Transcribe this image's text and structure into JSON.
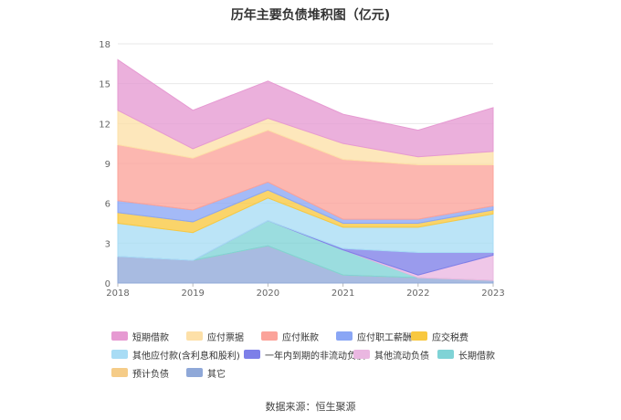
{
  "chart_data": {
    "type": "area",
    "title": "历年主要负债堆积图（亿元)",
    "xlabel": "",
    "ylabel": "",
    "x": [
      "2018",
      "2019",
      "2020",
      "2021",
      "2022",
      "2023"
    ],
    "ylim": [
      0,
      18
    ],
    "yticks": [
      0,
      3,
      6,
      9,
      12,
      15,
      18
    ],
    "grid": true,
    "legend_position": "bottom",
    "source": "数据来源：恒生聚源",
    "series": [
      {
        "name": "其它",
        "color": "#8fa8d8",
        "values": [
          2.0,
          1.7,
          2.8,
          0.6,
          0.4,
          0.2
        ]
      },
      {
        "name": "预计负债",
        "color": "#f5cc88",
        "values": [
          0,
          0,
          0,
          0,
          0,
          0
        ]
      },
      {
        "name": "长期借款",
        "color": "#7fd3d6",
        "values": [
          0,
          0,
          1.9,
          1.9,
          0,
          0
        ]
      },
      {
        "name": "其他流动负债",
        "color": "#eab7e1",
        "values": [
          0,
          0,
          0,
          0,
          0.2,
          1.9
        ]
      },
      {
        "name": "一年内到期的非流动负债",
        "color": "#7d7fe8",
        "values": [
          0,
          0,
          0,
          0.1,
          1.7,
          0.2
        ]
      },
      {
        "name": "其他应付款(含利息和股利)",
        "color": "#a8dcf5",
        "values": [
          2.5,
          2.1,
          1.7,
          1.6,
          1.9,
          2.9
        ]
      },
      {
        "name": "应交税费",
        "color": "#f8c840",
        "values": [
          0.8,
          0.8,
          0.6,
          0.3,
          0.3,
          0.3
        ]
      },
      {
        "name": "应付职工薪酬",
        "color": "#8aa6f5",
        "values": [
          0.9,
          0.9,
          0.6,
          0.3,
          0.3,
          0.3
        ]
      },
      {
        "name": "应付账款",
        "color": "#fba39a",
        "values": [
          4.2,
          3.9,
          3.9,
          4.5,
          4.1,
          3.1
        ]
      },
      {
        "name": "应付票据",
        "color": "#fde0a8",
        "values": [
          2.6,
          0.7,
          0.9,
          1.2,
          0.6,
          1.0
        ]
      },
      {
        "name": "短期借款",
        "color": "#e69ad2",
        "values": [
          3.8,
          2.9,
          2.8,
          2.2,
          2.0,
          3.3
        ]
      }
    ],
    "legend_order": [
      "短期借款",
      "应付票据",
      "应付账款",
      "应付职工薪酬",
      "应交税费",
      "其他应付款(含利息和股利)",
      "一年内到期的非流动负债",
      "其他流动负债",
      "长期借款",
      "预计负债",
      "其它"
    ]
  }
}
